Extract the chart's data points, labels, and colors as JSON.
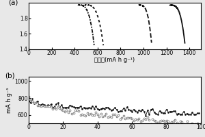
{
  "panel_a": {
    "xlabel": "比容量(mA h g⁻¹)",
    "xlim": [
      0,
      1500
    ],
    "ylim": [
      1.4,
      2.0
    ],
    "yticks": [
      1.4,
      1.6,
      1.8
    ],
    "xticks": [
      0,
      200,
      400,
      600,
      800,
      1000,
      1200,
      1400
    ],
    "curves": [
      {
        "x_start": 430,
        "x_end": 570,
        "y_top": 1.97,
        "y_bot": 1.45,
        "style": "dashdot_dense",
        "lw": 1.3
      },
      {
        "x_start": 490,
        "x_end": 650,
        "y_top": 1.97,
        "y_bot": 1.45,
        "style": "dotted",
        "lw": 1.3
      },
      {
        "x_start": 960,
        "x_end": 1070,
        "y_top": 1.97,
        "y_bot": 1.48,
        "style": "dashed",
        "lw": 1.3
      },
      {
        "x_start": 1230,
        "x_end": 1360,
        "y_top": 1.97,
        "y_bot": 1.48,
        "style": "solid",
        "lw": 1.3
      }
    ]
  },
  "panel_b": {
    "ylabel": "mA h g⁻¹",
    "xlim": [
      0,
      100
    ],
    "ylim": [
      500,
      1050
    ],
    "yticks": [
      600,
      800,
      1000
    ],
    "black_start": 760,
    "black_end": 610,
    "gray_start": 820,
    "gray_end": 490,
    "n_points": 100
  },
  "bg_color": "#e8e8e8",
  "panel_bg": "#ffffff",
  "label_a": "(a)",
  "label_b": "(b)"
}
